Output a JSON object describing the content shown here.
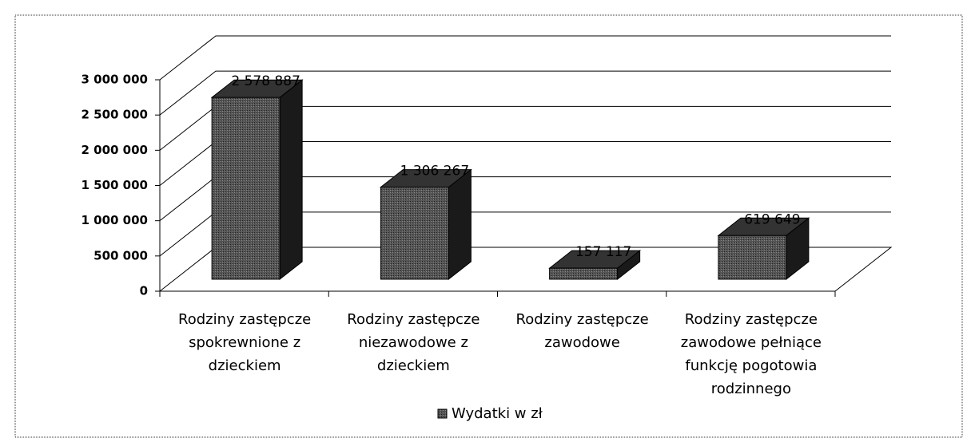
{
  "chart_data": {
    "type": "bar3d",
    "categories": [
      "Rodziny zastępcze spokrewnione z dzieckiem",
      "Rodziny zastępcze niezawodowe z dzieckiem",
      "Rodziny zastępcze zawodowe",
      "Rodziny zastępcze zawodowe pełniące funkcję pogotowia rodzinnego"
    ],
    "series": [
      {
        "name": "Wydatki w zł",
        "color": "#4a4a4a",
        "values": [
          2578887,
          1306267,
          157117,
          619649
        ],
        "value_labels": [
          "2 578 887",
          "1 306 267",
          "157 117",
          "619 649"
        ]
      }
    ],
    "ylim": [
      0,
      3000000
    ],
    "yticks": [
      0,
      {
        "value": 500000,
        "label": "500 000"
      },
      {
        "value": 1000000,
        "label": "1 000 000"
      },
      {
        "value": 1500000,
        "label": "1 500 000"
      },
      {
        "value": 2000000,
        "label": "2 000 000"
      },
      {
        "value": 2500000,
        "label": "2 500 000"
      },
      {
        "value": 3000000,
        "label": "3 000 000"
      }
    ],
    "grid": true,
    "legend": "bottom"
  }
}
